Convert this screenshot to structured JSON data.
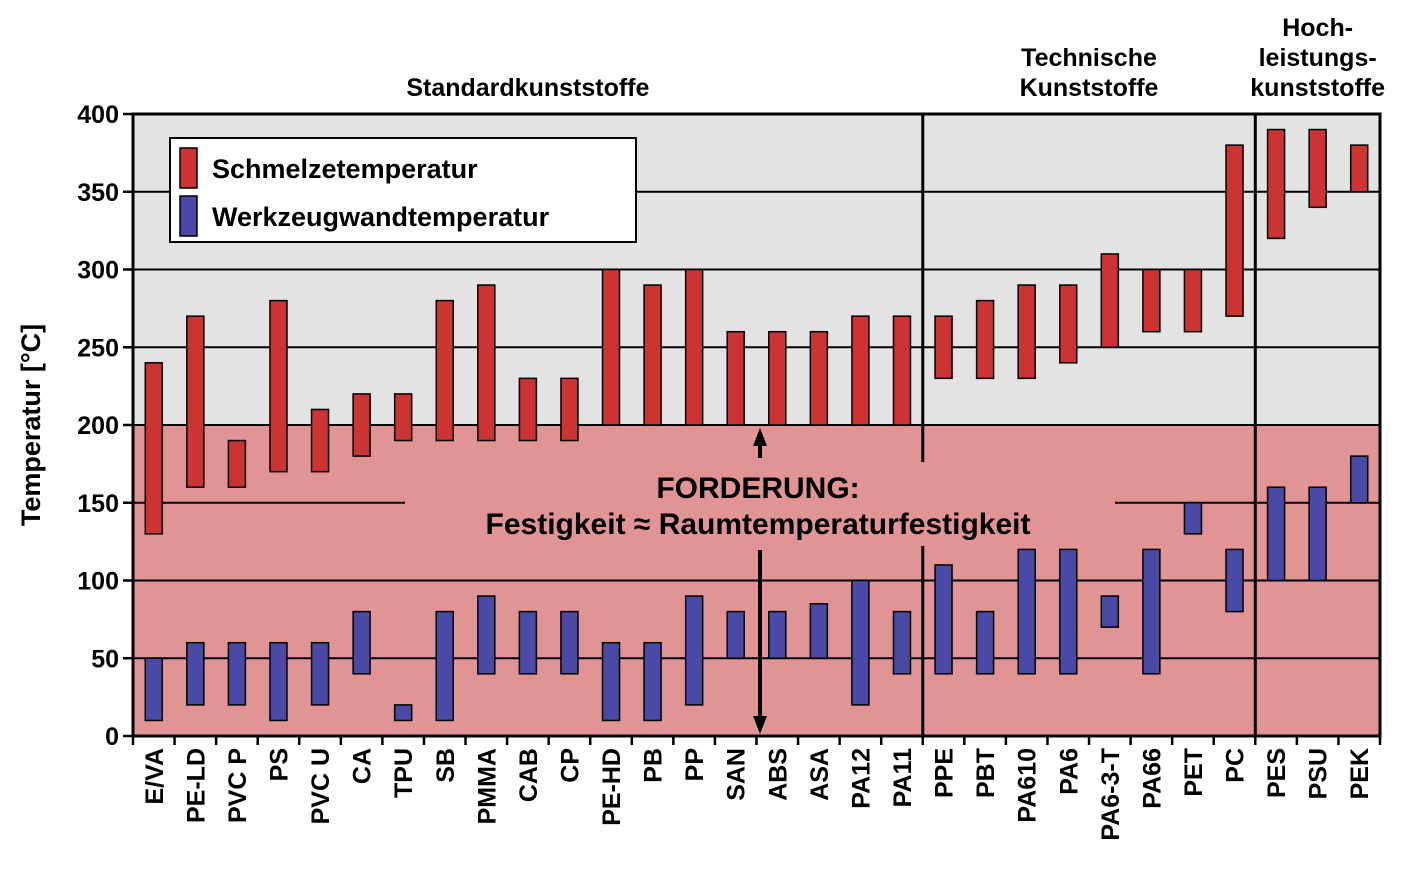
{
  "chart_data": {
    "type": "floating-bar",
    "ylabel": "Temperatur [°C]",
    "ylim": [
      0,
      400
    ],
    "yticks": [
      0,
      50,
      100,
      150,
      200,
      250,
      300,
      350,
      400
    ],
    "grid": true,
    "legend_position": "top-left",
    "colors": {
      "melt": "#cc3333",
      "mold": "#4a4aa6",
      "upper_background": "#e3e3e3",
      "lower_background": "#e09494"
    },
    "categories": [
      "E/VA",
      "PE-LD",
      "PVC P",
      "PS",
      "PVC U",
      "CA",
      "TPU",
      "SB",
      "PMMA",
      "CAB",
      "CP",
      "PE-HD",
      "PB",
      "PP",
      "SAN",
      "ABS",
      "ASA",
      "PA12",
      "PA11",
      "PPE",
      "PBT",
      "PA610",
      "PA6",
      "PA6-3-T",
      "PA66",
      "PET",
      "PC",
      "PES",
      "PSU",
      "PEK"
    ],
    "series": [
      {
        "name": "Schmelzetemperatur",
        "ranges": [
          [
            130,
            240
          ],
          [
            160,
            270
          ],
          [
            160,
            190
          ],
          [
            170,
            280
          ],
          [
            170,
            210
          ],
          [
            180,
            220
          ],
          [
            190,
            220
          ],
          [
            190,
            280
          ],
          [
            190,
            290
          ],
          [
            190,
            230
          ],
          [
            190,
            230
          ],
          [
            200,
            300
          ],
          [
            200,
            290
          ],
          [
            200,
            300
          ],
          [
            200,
            260
          ],
          [
            200,
            260
          ],
          [
            200,
            260
          ],
          [
            200,
            270
          ],
          [
            200,
            270
          ],
          [
            230,
            270
          ],
          [
            230,
            280
          ],
          [
            230,
            290
          ],
          [
            240,
            290
          ],
          [
            250,
            310
          ],
          [
            260,
            300
          ],
          [
            260,
            300
          ],
          [
            270,
            380
          ],
          [
            320,
            390
          ],
          [
            340,
            390
          ],
          [
            350,
            380
          ]
        ]
      },
      {
        "name": "Werkzeugwandtemperatur",
        "ranges": [
          [
            10,
            50
          ],
          [
            20,
            60
          ],
          [
            20,
            60
          ],
          [
            10,
            60
          ],
          [
            20,
            60
          ],
          [
            40,
            80
          ],
          [
            10,
            20
          ],
          [
            10,
            80
          ],
          [
            40,
            90
          ],
          [
            40,
            80
          ],
          [
            40,
            80
          ],
          [
            10,
            60
          ],
          [
            10,
            60
          ],
          [
            20,
            90
          ],
          [
            50,
            80
          ],
          [
            50,
            80
          ],
          [
            50,
            85
          ],
          [
            20,
            100
          ],
          [
            40,
            80
          ],
          [
            40,
            110
          ],
          [
            40,
            80
          ],
          [
            40,
            120
          ],
          [
            40,
            120
          ],
          [
            70,
            90
          ],
          [
            40,
            120
          ],
          [
            130,
            150
          ],
          [
            80,
            120
          ],
          [
            100,
            160
          ],
          [
            100,
            160
          ],
          [
            150,
            180
          ]
        ]
      }
    ],
    "groups": [
      {
        "label": "Standardkunststoffe",
        "from": 0,
        "to": 18
      },
      {
        "label": "Technische\nKunststoffe",
        "from": 19,
        "to": 26
      },
      {
        "label": "Hoch-\nleistungs-\nkunststoffe",
        "from": 27,
        "to": 29
      }
    ],
    "annotation": {
      "line1": "FORDERUNG:",
      "line2": "Festigkeit ≈ Raumtemperaturfestigkeit"
    }
  }
}
